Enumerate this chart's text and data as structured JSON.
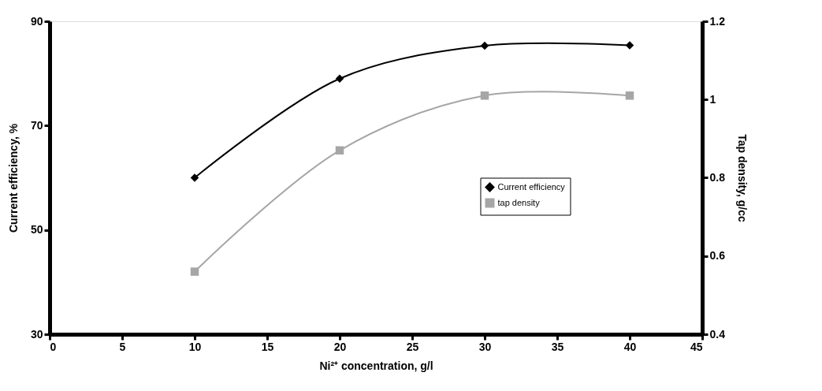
{
  "chart_data": {
    "type": "line",
    "xlabel": "Ni²⁺ concentration, g/l",
    "ylabel": "Current efficiency, %",
    "y2label": "Tap density, g/cc",
    "x": [
      10,
      20,
      30,
      40
    ],
    "series": [
      {
        "name": "Current efficiency",
        "color": "#000000",
        "values": [
          60,
          79,
          85.3,
          85.4
        ],
        "marker": "diamond"
      },
      {
        "name": "tap density",
        "color": "#a6a6a6",
        "values": [
          0.56,
          0.87,
          1.01,
          1.01
        ],
        "marker": "square",
        "axis": "y2"
      }
    ],
    "xlim": [
      0,
      45
    ],
    "xticks": [
      0,
      5,
      10,
      15,
      20,
      25,
      30,
      35,
      40,
      45
    ],
    "ylim": [
      30,
      90
    ],
    "yticks": [
      30,
      50,
      70,
      90
    ],
    "y2lim": [
      0.4,
      1.2
    ],
    "y2ticks": [
      0.4,
      0.6,
      0.8,
      1,
      1.2
    ],
    "legend": "right",
    "grid": false,
    "line_style": "solid"
  }
}
